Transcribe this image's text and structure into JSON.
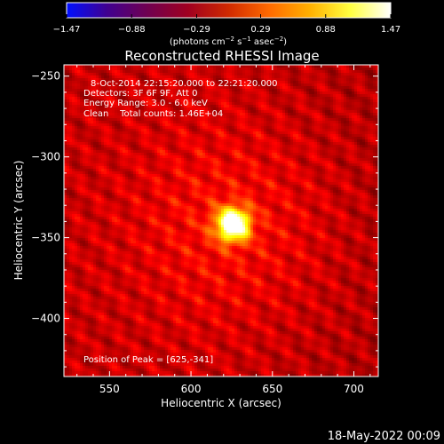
{
  "chart_data": {
    "type": "heatmap",
    "title": "Reconstructed RHESSI Image",
    "info_lines": [
      "8-Oct-2014 22:15:20.000 to 22:21:20.000",
      "Detectors: 3F 6F 9F, Att 0",
      "Energy Range: 3.0 - 6.0 keV",
      "Clean    Total counts: 1.46E+04"
    ],
    "peak_text": "Position of Peak = [625,-341]",
    "footer_date": "18-May-2022 00:09",
    "xlabel": "Heliocentric X (arcsec)",
    "ylabel": "Heliocentric Y (arcsec)",
    "xlim": [
      522,
      715
    ],
    "ylim": [
      -436,
      -243
    ],
    "x_ticks": [
      550,
      600,
      650,
      700
    ],
    "x_tick_labels": [
      "550",
      "600",
      "650",
      "700"
    ],
    "y_ticks": [
      -250,
      -300,
      -350,
      -400
    ],
    "y_tick_labels": [
      "−250",
      "−300",
      "−350",
      "−400"
    ],
    "colorbar": {
      "min": -1.47,
      "max": 1.47,
      "ticks": [
        -1.47,
        -0.88,
        -0.29,
        0.29,
        0.88,
        1.47
      ],
      "tick_labels": [
        "−1.47",
        "−0.88",
        "−0.29",
        "0.29",
        "0.88",
        "1.47"
      ],
      "unit_main": "(photons cm",
      "unit_exp1": "−2",
      "unit_mid": " s",
      "unit_exp2": "−1",
      "unit_mid2": " asec",
      "unit_exp3": "−2",
      "unit_end": ")"
    },
    "source": {
      "x": 625,
      "y": -341,
      "peak": 1.47,
      "sigma_arcsec": 7
    },
    "background_level": 0.35,
    "colormap": [
      "#0010ff",
      "#400090",
      "#700050",
      "#a00020",
      "#d02a00",
      "#ff6a00",
      "#ffb000",
      "#ffff40",
      "#ffffff"
    ]
  }
}
